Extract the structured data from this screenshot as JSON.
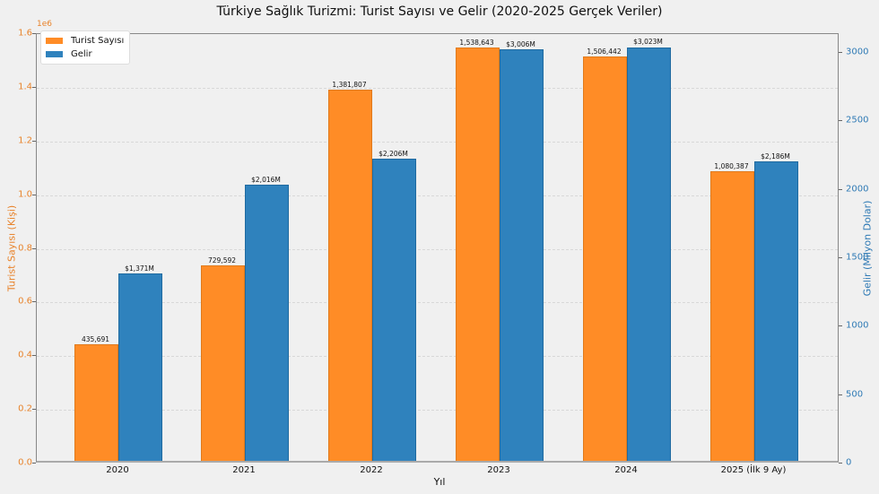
{
  "chart_data": {
    "type": "bar",
    "title": "Türkiye Sağlık Turizmi: Turist Sayısı ve Gelir (2020-2025 Gerçek Veriler)",
    "xlabel": "Yıl",
    "ylabel_left": "Turist Sayısı (Kişi)",
    "ylabel_right": "Gelir (Milyon Dolar)",
    "left_axis_offset": "1e6",
    "categories": [
      "2020",
      "2021",
      "2022",
      "2023",
      "2024",
      "2025 (İlk 9 Ay)"
    ],
    "series": [
      {
        "name": "Turist Sayısı",
        "axis": "left",
        "color": "#ff8c26",
        "values": [
          435691,
          729592,
          1381807,
          1538643,
          1506442,
          1080387
        ],
        "labels": [
          "435,691",
          "729,592",
          "1,381,807",
          "1,538,643",
          "1,506,442",
          "1,080,387"
        ]
      },
      {
        "name": "Gelir",
        "axis": "right",
        "color": "#2f82bd",
        "values": [
          1371,
          2016,
          2206,
          3006,
          3023,
          2186
        ],
        "labels": [
          "$1,371M",
          "$2,016M",
          "$2,206M",
          "$3,006M",
          "$3,023M",
          "$2,186M"
        ]
      }
    ],
    "ylim_left": [
      0,
      1600000
    ],
    "ylim_right": [
      0,
      3130
    ],
    "yticks_left": [
      "0.0",
      "0.2",
      "0.4",
      "0.6",
      "0.8",
      "1.0",
      "1.2",
      "1.4",
      "1.6"
    ],
    "yticks_right": [
      "0",
      "500",
      "1000",
      "1500",
      "2000",
      "2500",
      "3000"
    ],
    "grid": true,
    "legend_position": "upper left"
  }
}
